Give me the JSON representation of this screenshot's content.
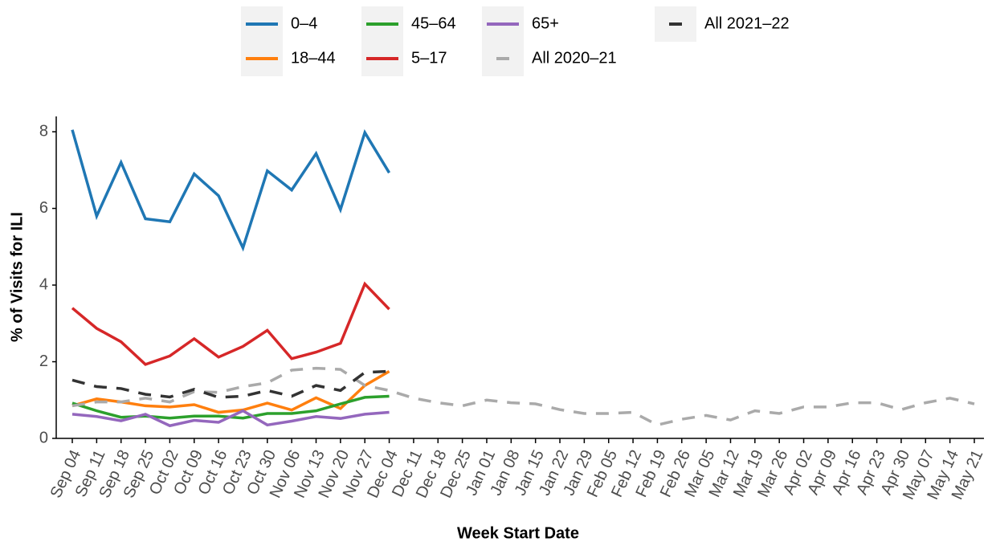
{
  "chart_data": {
    "type": "line",
    "x_label": "Week Start Date",
    "y_label": "% of Visits for ILI",
    "categories": [
      "Sep 04",
      "Sep 11",
      "Sep 18",
      "Sep 25",
      "Oct 02",
      "Oct 09",
      "Oct 16",
      "Oct 23",
      "Oct 30",
      "Nov 06",
      "Nov 13",
      "Nov 20",
      "Nov 27",
      "Dec 04",
      "Dec 11",
      "Dec 18",
      "Dec 25",
      "Jan 01",
      "Jan 08",
      "Jan 15",
      "Jan 22",
      "Jan 29",
      "Feb 05",
      "Feb 12",
      "Feb 19",
      "Feb 26",
      "Mar 05",
      "Mar 12",
      "Mar 19",
      "Mar 26",
      "Apr 02",
      "Apr 09",
      "Apr 16",
      "Apr 23",
      "Apr 30",
      "May 07",
      "May 14",
      "May 21"
    ],
    "ylim": [
      0,
      8.4
    ],
    "yticks": [
      0,
      2,
      4,
      6,
      8
    ],
    "grid": false,
    "series": [
      {
        "name": "0–4",
        "color": "#1f77b4",
        "linetype": "solid",
        "values": [
          8.05,
          5.8,
          7.2,
          5.73,
          5.65,
          6.9,
          6.33,
          4.97,
          6.98,
          6.48,
          7.43,
          5.97,
          7.98,
          6.93,
          null,
          null,
          null,
          null,
          null,
          null,
          null,
          null,
          null,
          null,
          null,
          null,
          null,
          null,
          null,
          null,
          null,
          null,
          null,
          null,
          null,
          null,
          null,
          null
        ]
      },
      {
        "name": "18–44",
        "color": "#ff7f0e",
        "linetype": "solid",
        "values": [
          0.85,
          1.03,
          0.95,
          0.85,
          0.82,
          0.88,
          0.68,
          0.74,
          0.92,
          0.74,
          1.06,
          0.78,
          1.38,
          1.75,
          null,
          null,
          null,
          null,
          null,
          null,
          null,
          null,
          null,
          null,
          null,
          null,
          null,
          null,
          null,
          null,
          null,
          null,
          null,
          null,
          null,
          null,
          null,
          null
        ]
      },
      {
        "name": "45–64",
        "color": "#2ca02c",
        "linetype": "solid",
        "values": [
          0.92,
          0.72,
          0.55,
          0.58,
          0.53,
          0.58,
          0.58,
          0.53,
          0.65,
          0.65,
          0.72,
          0.9,
          1.07,
          1.1,
          null,
          null,
          null,
          null,
          null,
          null,
          null,
          null,
          null,
          null,
          null,
          null,
          null,
          null,
          null,
          null,
          null,
          null,
          null,
          null,
          null,
          null,
          null,
          null
        ]
      },
      {
        "name": "5–17",
        "color": "#d62728",
        "linetype": "solid",
        "values": [
          3.4,
          2.87,
          2.52,
          1.93,
          2.15,
          2.6,
          2.12,
          2.4,
          2.82,
          2.08,
          2.25,
          2.48,
          4.03,
          3.37,
          null,
          null,
          null,
          null,
          null,
          null,
          null,
          null,
          null,
          null,
          null,
          null,
          null,
          null,
          null,
          null,
          null,
          null,
          null,
          null,
          null,
          null,
          null,
          null
        ]
      },
      {
        "name": "65+",
        "color": "#9467bd",
        "linetype": "solid",
        "values": [
          0.63,
          0.57,
          0.46,
          0.63,
          0.33,
          0.47,
          0.42,
          0.72,
          0.35,
          0.45,
          0.57,
          0.52,
          0.63,
          0.68,
          null,
          null,
          null,
          null,
          null,
          null,
          null,
          null,
          null,
          null,
          null,
          null,
          null,
          null,
          null,
          null,
          null,
          null,
          null,
          null,
          null,
          null,
          null,
          null
        ]
      },
      {
        "name": "All 2020–21",
        "color": "#aaaaaa",
        "linetype": "dashed",
        "values": [
          0.85,
          0.95,
          0.95,
          1.05,
          0.95,
          1.22,
          1.2,
          1.35,
          1.45,
          1.78,
          1.83,
          1.8,
          1.38,
          1.25,
          1.05,
          0.93,
          0.85,
          1.0,
          0.93,
          0.9,
          0.75,
          0.65,
          0.65,
          0.68,
          0.35,
          0.5,
          0.6,
          0.48,
          0.72,
          0.65,
          0.82,
          0.82,
          0.93,
          0.93,
          0.75,
          0.93,
          1.05,
          0.9
        ]
      },
      {
        "name": "All 2021–22",
        "color": "#333333",
        "linetype": "dashed",
        "values": [
          1.52,
          1.35,
          1.3,
          1.15,
          1.08,
          1.28,
          1.07,
          1.1,
          1.25,
          1.1,
          1.38,
          1.25,
          1.72,
          1.75,
          null,
          null,
          null,
          null,
          null,
          null,
          null,
          null,
          null,
          null,
          null,
          null,
          null,
          null,
          null,
          null,
          null,
          null,
          null,
          null,
          null,
          null,
          null,
          null
        ]
      }
    ]
  }
}
